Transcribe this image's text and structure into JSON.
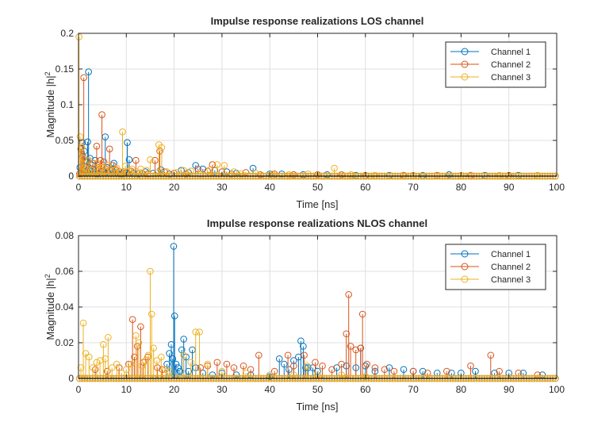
{
  "chart_data": [
    {
      "type": "stem",
      "title": "Impulse response realizations LOS channel",
      "xlabel": "Time [ns]",
      "ylabel": "Magnitude |h|",
      "ylabel_superscript": "2",
      "xlim": [
        0,
        100
      ],
      "ylim": [
        0,
        0.2
      ],
      "xticks": [
        0,
        10,
        20,
        30,
        40,
        50,
        60,
        70,
        80,
        90,
        100
      ],
      "yticks": [
        0,
        0.05,
        0.1,
        0.15,
        0.2
      ],
      "ytick_labels": [
        "0",
        "0.05",
        "0.1",
        "0.15",
        "0.2"
      ],
      "grid": true,
      "legend_position": "top-right",
      "series": [
        {
          "name": "Channel 1",
          "color": "#0072BD",
          "x": [
            0.3,
            0.8,
            1.2,
            1.6,
            1.9,
            2.1,
            2.4,
            2.8,
            3.2,
            3.5,
            4.0,
            4.4,
            5.1,
            5.6,
            6.0,
            6.3,
            7.0,
            7.4,
            8.2,
            9.0,
            9.5,
            10.2,
            10.6,
            11.4,
            12.5,
            14.0,
            15.6,
            17.2,
            19.0,
            21.5,
            23.0,
            24.5,
            26.0,
            28.5,
            31.0,
            33.0,
            36.5,
            40.0,
            42.5,
            47.0,
            52.0,
            58.0,
            65.0,
            72.0,
            77.5,
            85.0,
            92.0
          ],
          "y": [
            0.012,
            0.047,
            0.035,
            0.02,
            0.048,
            0.146,
            0.025,
            0.015,
            0.005,
            0.022,
            0.003,
            0.01,
            0.007,
            0.055,
            0.012,
            0.004,
            0.009,
            0.018,
            0.004,
            0.003,
            0.006,
            0.047,
            0.023,
            0.004,
            0.003,
            0.006,
            0.004,
            0.009,
            0.003,
            0.008,
            0.005,
            0.015,
            0.01,
            0.008,
            0.006,
            0.004,
            0.011,
            0.003,
            0.003,
            0.002,
            0.002,
            0.001,
            0.001,
            0.001,
            0.002,
            0.001,
            0.001
          ]
        },
        {
          "name": "Channel 2",
          "color": "#D95319",
          "x": [
            0.2,
            0.5,
            0.9,
            1.1,
            1.4,
            1.8,
            2.6,
            3.0,
            3.4,
            3.8,
            4.2,
            4.6,
            4.9,
            5.3,
            5.8,
            6.5,
            7.2,
            7.8,
            8.5,
            9.3,
            10.0,
            11.0,
            12.0,
            13.3,
            14.5,
            16.0,
            17.0,
            18.0,
            20.0,
            22.5,
            25.0,
            27.0,
            28.0,
            30.0,
            32.0,
            35.0,
            38.0,
            41.0,
            45.0,
            50.0,
            55.0,
            60.0,
            68.0,
            75.0,
            82.0,
            90.0
          ],
          "y": [
            0.003,
            0.038,
            0.028,
            0.138,
            0.012,
            0.02,
            0.008,
            0.018,
            0.005,
            0.042,
            0.012,
            0.022,
            0.086,
            0.02,
            0.01,
            0.038,
            0.015,
            0.009,
            0.006,
            0.004,
            0.005,
            0.007,
            0.022,
            0.004,
            0.003,
            0.022,
            0.035,
            0.006,
            0.004,
            0.003,
            0.01,
            0.007,
            0.016,
            0.006,
            0.003,
            0.005,
            0.002,
            0.003,
            0.002,
            0.002,
            0.002,
            0.001,
            0.001,
            0.001,
            0.001,
            0.001
          ]
        },
        {
          "name": "Channel 3",
          "color": "#EDB120",
          "x": [
            0.1,
            0.35,
            0.7,
            1.0,
            1.3,
            1.7,
            2.2,
            2.7,
            3.3,
            3.9,
            4.5,
            5.0,
            5.5,
            6.2,
            6.8,
            7.5,
            8.0,
            8.8,
            9.2,
            9.8,
            10.5,
            11.2,
            12.2,
            13.0,
            14.2,
            15.0,
            16.5,
            16.8,
            17.4,
            18.5,
            20.5,
            22.0,
            23.5,
            25.5,
            27.5,
            29.0,
            30.5,
            32.5,
            34.0,
            37.0,
            40.5,
            44.0,
            48.0,
            53.5,
            57.0,
            62.0,
            70.0,
            80.0,
            88.0,
            96.0
          ],
          "y": [
            0.195,
            0.055,
            0.04,
            0.025,
            0.012,
            0.01,
            0.022,
            0.008,
            0.005,
            0.018,
            0.009,
            0.012,
            0.007,
            0.015,
            0.005,
            0.008,
            0.011,
            0.006,
            0.062,
            0.014,
            0.007,
            0.01,
            0.006,
            0.01,
            0.008,
            0.023,
            0.005,
            0.044,
            0.04,
            0.006,
            0.005,
            0.008,
            0.007,
            0.003,
            0.009,
            0.016,
            0.015,
            0.006,
            0.003,
            0.004,
            0.003,
            0.002,
            0.003,
            0.011,
            0.002,
            0.001,
            0.001,
            0.001,
            0.001,
            0.001
          ]
        }
      ]
    },
    {
      "type": "stem",
      "title": "Impulse response realizations NLOS channel",
      "xlabel": "Time [ns]",
      "ylabel": "Magnitude |h|",
      "ylabel_superscript": "2",
      "xlim": [
        0,
        100
      ],
      "ylim": [
        0,
        0.08
      ],
      "xticks": [
        0,
        10,
        20,
        30,
        40,
        50,
        60,
        70,
        80,
        90,
        100
      ],
      "yticks": [
        0,
        0.02,
        0.04,
        0.06,
        0.08
      ],
      "ytick_labels": [
        "0",
        "0.02",
        "0.04",
        "0.06",
        "0.08"
      ],
      "grid": true,
      "legend_position": "top-right",
      "series": [
        {
          "name": "Channel 1",
          "color": "#0072BD",
          "x": [
            18.5,
            19.0,
            19.4,
            19.7,
            19.9,
            20.1,
            20.4,
            20.8,
            21.2,
            21.6,
            22.0,
            22.5,
            23.0,
            23.8,
            24.5,
            26.0,
            28.0,
            30.0,
            33.0,
            36.0,
            40.0,
            42.0,
            43.0,
            44.0,
            45.0,
            46.0,
            46.5,
            47.0,
            47.5,
            48.0,
            49.0,
            50.0,
            54.0,
            56.0,
            58.0,
            59.0,
            60.0,
            62.0,
            65.0,
            68.0,
            70.0,
            72.0,
            75.0,
            78.0,
            80.0,
            83.0,
            87.0,
            90.0,
            93.0,
            97.0
          ],
          "y": [
            0.008,
            0.014,
            0.019,
            0.011,
            0.074,
            0.035,
            0.008,
            0.006,
            0.004,
            0.016,
            0.022,
            0.012,
            0.004,
            0.016,
            0.006,
            0.003,
            0.002,
            0.003,
            0.002,
            0.002,
            0.001,
            0.011,
            0.008,
            0.005,
            0.01,
            0.012,
            0.021,
            0.018,
            0.006,
            0.006,
            0.006,
            0.004,
            0.006,
            0.007,
            0.006,
            0.017,
            0.007,
            0.004,
            0.006,
            0.005,
            0.004,
            0.004,
            0.003,
            0.003,
            0.003,
            0.004,
            0.003,
            0.003,
            0.003,
            0.002
          ]
        },
        {
          "name": "Channel 2",
          "color": "#D95319",
          "x": [
            3.5,
            6.0,
            8.5,
            10.5,
            11.3,
            11.7,
            12.3,
            13.0,
            13.6,
            14.5,
            16.5,
            17.5,
            25.5,
            27.0,
            29.0,
            31.0,
            32.5,
            34.5,
            36.0,
            37.7,
            41.0,
            43.8,
            45.0,
            47.2,
            49.5,
            51.0,
            53.0,
            55.0,
            56.0,
            56.5,
            56.9,
            58.0,
            59.0,
            59.4,
            60.3,
            62.0,
            64.0,
            66.0,
            70.0,
            73.0,
            77.0,
            82.0,
            86.2,
            88.0,
            92.0,
            96.0
          ],
          "y": [
            0.005,
            0.004,
            0.006,
            0.008,
            0.033,
            0.012,
            0.018,
            0.029,
            0.009,
            0.012,
            0.006,
            0.005,
            0.006,
            0.007,
            0.009,
            0.008,
            0.006,
            0.007,
            0.005,
            0.013,
            0.004,
            0.013,
            0.007,
            0.013,
            0.009,
            0.007,
            0.005,
            0.008,
            0.025,
            0.047,
            0.018,
            0.016,
            0.017,
            0.036,
            0.008,
            0.006,
            0.005,
            0.004,
            0.004,
            0.003,
            0.004,
            0.007,
            0.013,
            0.004,
            0.003,
            0.002
          ]
        },
        {
          "name": "Channel 3",
          "color": "#EDB120",
          "x": [
            0.5,
            1.0,
            1.5,
            2.2,
            3.0,
            3.8,
            4.5,
            5.2,
            5.6,
            6.2,
            7.0,
            8.0,
            9.0,
            10.0,
            11.0,
            12.0,
            12.6,
            13.3,
            14.0,
            14.6,
            15.0,
            15.3,
            15.7,
            16.4,
            17.3,
            18.2,
            19.0,
            22.0,
            23.5,
            24.5,
            25.3,
            27.0,
            30.0,
            35.0,
            40.0,
            45.0,
            47.8,
            50.0,
            55.0,
            60.0
          ],
          "y": [
            0.006,
            0.031,
            0.014,
            0.012,
            0.006,
            0.009,
            0.01,
            0.019,
            0.011,
            0.023,
            0.006,
            0.008,
            0.003,
            0.005,
            0.008,
            0.024,
            0.02,
            0.007,
            0.01,
            0.013,
            0.06,
            0.036,
            0.017,
            0.01,
            0.012,
            0.005,
            0.004,
            0.013,
            0.009,
            0.026,
            0.026,
            0.008,
            0.004,
            0.003,
            0.002,
            0.002,
            0.007,
            0.002,
            0.002,
            0.001
          ]
        }
      ]
    }
  ]
}
